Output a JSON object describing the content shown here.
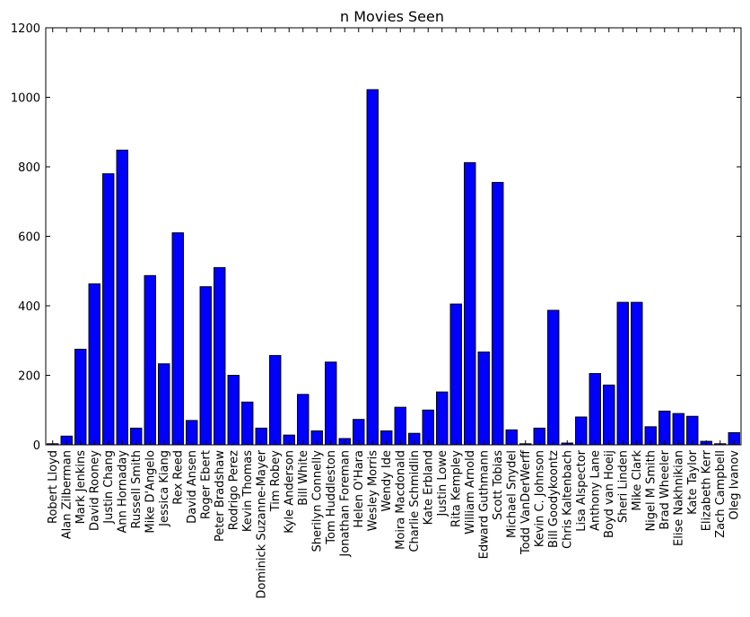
{
  "chart_data": {
    "type": "bar",
    "title": "n Movies Seen",
    "xlabel": "",
    "ylabel": "",
    "ylim": [
      0,
      1200
    ],
    "yticks": [
      0,
      200,
      400,
      600,
      800,
      1000,
      1200
    ],
    "grid": false,
    "bar_color": "#0000ff",
    "bar_edge_color": "#000000",
    "categories": [
      "Robert Lloyd",
      "Alan Zilberman",
      "Mark Jenkins",
      "David Rooney",
      "Justin Chang",
      "Ann Hornaday",
      "Russell Smith",
      "Mike D'Angelo",
      "Jessica Kiang",
      "Rex Reed",
      "David Ansen",
      "Roger Ebert",
      "Peter Bradshaw",
      "Rodrigo Perez",
      "Kevin Thomas",
      "Dominick Suzanne-Mayer",
      "Tim Robey",
      "Kyle Anderson",
      "Bill White",
      "Sherilyn Connelly",
      "Tom Huddleston",
      "Jonathan Foreman",
      "Helen O'Hara",
      "Wesley Morris",
      "Wendy Ide",
      "Moira Macdonald",
      "Charlie Schmidlin",
      "Kate Erbland",
      "Justin Lowe",
      "Rita Kempley",
      "William Arnold",
      "Edward Guthmann",
      "Scott Tobias",
      "Michael Snydel",
      "Todd VanDerWerff",
      "Kevin C. Johnson",
      "Bill Goodykoontz",
      "Chris Kaltenbach",
      "Lisa Alspector",
      "Anthony Lane",
      "Boyd van Hoeij",
      "Sheri Linden",
      "Mike Clark",
      "Nigel M Smith",
      "Brad Wheeler",
      "Elise Nakhnikian",
      "Kate Taylor",
      "Elizabeth Kerr",
      "Zach Campbell",
      "Oleg Ivanov"
    ],
    "values": [
      3,
      25,
      275,
      463,
      780,
      848,
      48,
      487,
      233,
      610,
      70,
      455,
      510,
      200,
      123,
      48,
      257,
      28,
      145,
      40,
      238,
      18,
      73,
      1022,
      40,
      108,
      33,
      100,
      152,
      405,
      812,
      267,
      755,
      43,
      3,
      48,
      387,
      5,
      80,
      205,
      172,
      410,
      410,
      52,
      97,
      90,
      82,
      10,
      3,
      35
    ]
  }
}
